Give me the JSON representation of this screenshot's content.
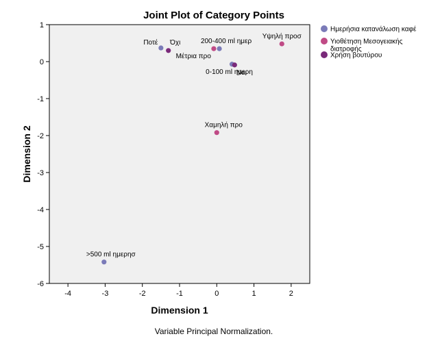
{
  "chart_data": {
    "type": "scatter",
    "title": "Joint Plot of Category Points",
    "xlabel": "Dimension 1",
    "ylabel": "Dimension 2",
    "xlim": [
      -4.5,
      2.5
    ],
    "ylim": [
      -6,
      1
    ],
    "xticks": [
      -4,
      -3,
      -2,
      -1,
      0,
      1,
      2
    ],
    "yticks": [
      1,
      0,
      -1,
      -2,
      -3,
      -4,
      -5,
      -6
    ],
    "grid": false,
    "legend_position": "right",
    "footnote": "Variable Principal Normalization.",
    "series": [
      {
        "name": "Ημερήσια κατανάλωση καφέ",
        "color": "#7b7bb8",
        "points": [
          {
            "label": "Ποτέ",
            "x": -1.5,
            "y": 0.37
          },
          {
            "label": "200-400 ml ημερ",
            "x": 0.07,
            "y": 0.35
          },
          {
            "label": "0-100 ml ημερη",
            "x": 0.41,
            "y": -0.07
          },
          {
            "label": ">500 ml ημερησ",
            "x": -3.03,
            "y": -5.42
          }
        ]
      },
      {
        "name": "Υιοθέτηση Μεσογειακής διατροφής",
        "color": "#c04b86",
        "points": [
          {
            "label": "Μέτρια προ",
            "x": -0.08,
            "y": 0.35
          },
          {
            "label": "Υψηλή προσ",
            "x": 1.75,
            "y": 0.48
          },
          {
            "label": "Χαμηλή προ",
            "x": 0.0,
            "y": -1.92
          }
        ]
      },
      {
        "name": "Χρήση βουτύρου",
        "color": "#7a2a7a",
        "points": [
          {
            "label": "Όχι",
            "x": -1.3,
            "y": 0.3
          },
          {
            "label": "Ναι",
            "x": 0.48,
            "y": -0.09
          }
        ]
      }
    ]
  }
}
